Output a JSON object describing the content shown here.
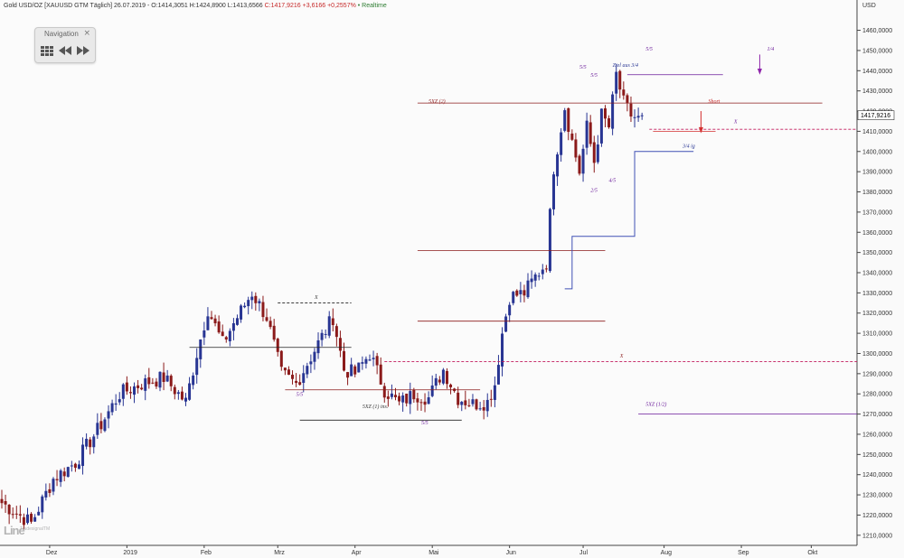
{
  "header": {
    "instrument": "Gold USD/OZ [XAUUSD GTM Täglich] 26.07.2019 - O:1414,3051 H:1424,8900 L:1413,6566",
    "change": "C:1417,9216 +3,6166 +0,2557%",
    "realtime": "• Realtime"
  },
  "navigation": {
    "title": "Navigation",
    "close": "×"
  },
  "logo": {
    "text": "Line",
    "sub": "TradesignalTM"
  },
  "colors": {
    "bull": "#283593",
    "bear": "#8b1a1a",
    "axis_text": "#333333"
  },
  "chart_data": {
    "type": "candlestick",
    "ylim": [
      1205,
      1475
    ],
    "yaxis_label": "USD",
    "y_ticks": [
      1210,
      1220,
      1230,
      1240,
      1250,
      1260,
      1270,
      1280,
      1290,
      1300,
      1310,
      1320,
      1330,
      1340,
      1350,
      1360,
      1370,
      1380,
      1390,
      1400,
      1410,
      1420,
      1430,
      1440,
      1450,
      1460
    ],
    "current_price": 1417.9216,
    "current_price_label": "1417,9216",
    "x_months": [
      {
        "label": "Dez",
        "bar": 13
      },
      {
        "label": "2019",
        "bar": 34
      },
      {
        "label": "Feb",
        "bar": 55
      },
      {
        "label": "Mrz",
        "bar": 75
      },
      {
        "label": "Apr",
        "bar": 96
      },
      {
        "label": "Mai",
        "bar": 117
      },
      {
        "label": "Jun",
        "bar": 138
      },
      {
        "label": "Jul",
        "bar": 158
      },
      {
        "label": "Aug",
        "bar": 180
      },
      {
        "label": "Sep",
        "bar": 201
      },
      {
        "label": "Okt",
        "bar": 220
      }
    ],
    "close_anchors": [
      [
        0,
        1226
      ],
      [
        8,
        1216
      ],
      [
        14,
        1238
      ],
      [
        20,
        1246
      ],
      [
        26,
        1262
      ],
      [
        32,
        1280
      ],
      [
        38,
        1285
      ],
      [
        44,
        1288
      ],
      [
        50,
        1276
      ],
      [
        53,
        1300
      ],
      [
        56,
        1322
      ],
      [
        60,
        1305
      ],
      [
        63,
        1315
      ],
      [
        68,
        1330
      ],
      [
        72,
        1318
      ],
      [
        76,
        1290
      ],
      [
        80,
        1285
      ],
      [
        86,
        1305
      ],
      [
        90,
        1318
      ],
      [
        93,
        1292
      ],
      [
        96,
        1290
      ],
      [
        100,
        1300
      ],
      [
        104,
        1282
      ],
      [
        108,
        1275
      ],
      [
        112,
        1280
      ],
      [
        116,
        1278
      ],
      [
        120,
        1292
      ],
      [
        124,
        1278
      ],
      [
        128,
        1275
      ],
      [
        132,
        1276
      ],
      [
        134,
        1285
      ],
      [
        136,
        1310
      ],
      [
        138,
        1328
      ],
      [
        142,
        1330
      ],
      [
        145,
        1338
      ],
      [
        148,
        1345
      ],
      [
        150,
        1392
      ],
      [
        153,
        1422
      ],
      [
        155,
        1405
      ],
      [
        157,
        1390
      ],
      [
        159,
        1412
      ],
      [
        161,
        1395
      ],
      [
        163,
        1418
      ],
      [
        165,
        1412
      ],
      [
        167,
        1438
      ],
      [
        169,
        1424
      ],
      [
        171,
        1418
      ],
      [
        173,
        1416
      ],
      [
        174,
        1418
      ]
    ],
    "volatility": 5,
    "seed": 7,
    "annotations": [
      {
        "text": "5XZ (2)",
        "x": 116,
        "price": 1424,
        "color": "#8b1a1a"
      },
      {
        "text": "5XZ (1) ins.",
        "x": 98,
        "price": 1273,
        "color": "#333333"
      },
      {
        "text": "5/5",
        "x": 80,
        "price": 1279,
        "color": "#6a1b9a"
      },
      {
        "text": "5/5",
        "x": 114,
        "price": 1265,
        "color": "#6a1b9a"
      },
      {
        "text": "5/5",
        "x": 157,
        "price": 1441,
        "color": "#6a1b9a"
      },
      {
        "text": "5/5",
        "x": 160,
        "price": 1437,
        "color": "#6a1b9a"
      },
      {
        "text": "5/5",
        "x": 175,
        "price": 1450,
        "color": "#6a1b9a"
      },
      {
        "text": "4/5",
        "x": 165,
        "price": 1385,
        "color": "#6a1b9a"
      },
      {
        "text": "2/5",
        "x": 160,
        "price": 1380,
        "color": "#6a1b9a"
      },
      {
        "text": "Ziel aus 3/4",
        "x": 166,
        "price": 1442,
        "color": "#283593"
      },
      {
        "text": "3/4 ig",
        "x": 185,
        "price": 1402,
        "color": "#283593"
      },
      {
        "text": "5XZ (1/2)",
        "x": 175,
        "price": 1274,
        "color": "#6a1b9a"
      },
      {
        "text": "Short",
        "x": 192,
        "price": 1424,
        "color": "#c62828"
      },
      {
        "text": "1/4",
        "x": 208,
        "price": 1450,
        "color": "#6a1b9a"
      },
      {
        "text": "X",
        "x": 85,
        "price": 1327,
        "color": "#333333"
      },
      {
        "text": "X",
        "x": 168,
        "price": 1298,
        "color": "#8b1a1a"
      },
      {
        "text": "X",
        "x": 199,
        "price": 1414,
        "color": "#6a1b9a"
      }
    ],
    "hlines": [
      {
        "price": 1424,
        "from": 113,
        "to": 223,
        "color": "#8b1a1a",
        "dash": false
      },
      {
        "price": 1351,
        "from": 113,
        "to": 164,
        "color": "#8b1a1a",
        "dash": false
      },
      {
        "price": 1316,
        "from": 113,
        "to": 164,
        "color": "#8b1a1a",
        "dash": false
      },
      {
        "price": 1303,
        "from": 51,
        "to": 95,
        "color": "#222222",
        "dash": false
      },
      {
        "price": 1282,
        "from": 77,
        "to": 130,
        "color": "#8b1a1a",
        "dash": false
      },
      {
        "price": 1267,
        "from": 81,
        "to": 125,
        "color": "#222222",
        "dash": false
      },
      {
        "price": 1325,
        "from": 75,
        "to": 95,
        "color": "#222222",
        "dash": true
      },
      {
        "price": 1296,
        "from": 104,
        "to": 236,
        "color": "#c2185b",
        "dash": true
      },
      {
        "price": 1411,
        "from": 176,
        "to": 236,
        "color": "#c2185b",
        "dash": true
      },
      {
        "price": 1410,
        "from": 177,
        "to": 194,
        "color": "#d32f2f",
        "dash": false
      },
      {
        "price": 1270,
        "from": 173,
        "to": 236,
        "color": "#6a1b9a",
        "dash": false
      },
      {
        "price": 1438,
        "from": 170,
        "to": 196,
        "color": "#6a1b9a",
        "dash": false
      }
    ],
    "step_line": [
      [
        153,
        1332
      ],
      [
        155,
        1332
      ],
      [
        155,
        1358
      ],
      [
        172,
        1358
      ],
      [
        172,
        1400
      ],
      [
        188,
        1400
      ]
    ]
  }
}
